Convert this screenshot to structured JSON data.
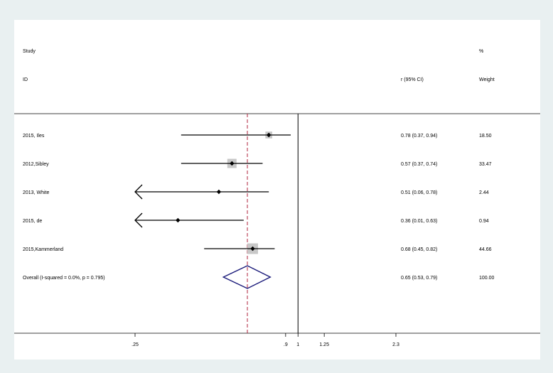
{
  "header": {
    "study_line1": "Study",
    "study_line2": "ID",
    "estimate_label": "r (95% CI)",
    "weight_line1": "%",
    "weight_line2": "Weight"
  },
  "studies": [
    {
      "label": "2015, Iles",
      "r": 0.78,
      "lo": 0.37,
      "hi": 0.94,
      "ci_text": "0.78 (0.37, 0.94)",
      "weight": "18.50",
      "clipped_left": false
    },
    {
      "label": "2012,Sibley",
      "r": 0.57,
      "lo": 0.37,
      "hi": 0.74,
      "ci_text": "0.57 (0.37, 0.74)",
      "weight": "33.47",
      "clipped_left": false
    },
    {
      "label": "2013, White",
      "r": 0.51,
      "lo": 0.06,
      "hi": 0.78,
      "ci_text": "0.51 (0.06, 0.78)",
      "weight": "2.44",
      "clipped_left": true
    },
    {
      "label": "2015, de",
      "r": 0.36,
      "lo": 0.01,
      "hi": 0.63,
      "ci_text": "0.36 (0.01, 0.63)",
      "weight": "0.94",
      "clipped_left": true
    },
    {
      "label": "2015,Kammerland",
      "r": 0.68,
      "lo": 0.45,
      "hi": 0.82,
      "ci_text": "0.68 (0.45, 0.82)",
      "weight": "44.66",
      "clipped_left": false
    }
  ],
  "overall": {
    "label": "Overall  (I-squared = 0.0%, p = 0.795)",
    "r": 0.65,
    "lo": 0.53,
    "hi": 0.79,
    "ci_text": "0.65 (0.53, 0.79)",
    "weight": "100.00"
  },
  "chart_data": {
    "type": "forest",
    "x_ticks": [
      ".25",
      ".9",
      "1",
      "1.25",
      "2.3"
    ],
    "x_tick_values": [
      0.25,
      0.9,
      1,
      1.25,
      2.3
    ],
    "xlim": [
      0.25,
      2.3
    ],
    "null_line": 1,
    "pooled_line": 0.65,
    "colors": {
      "pooled_line": "#b0203a",
      "diamond": "#1a1a7a",
      "weight_box": "#c8c8c8",
      "background": "#e9f0f1"
    }
  }
}
